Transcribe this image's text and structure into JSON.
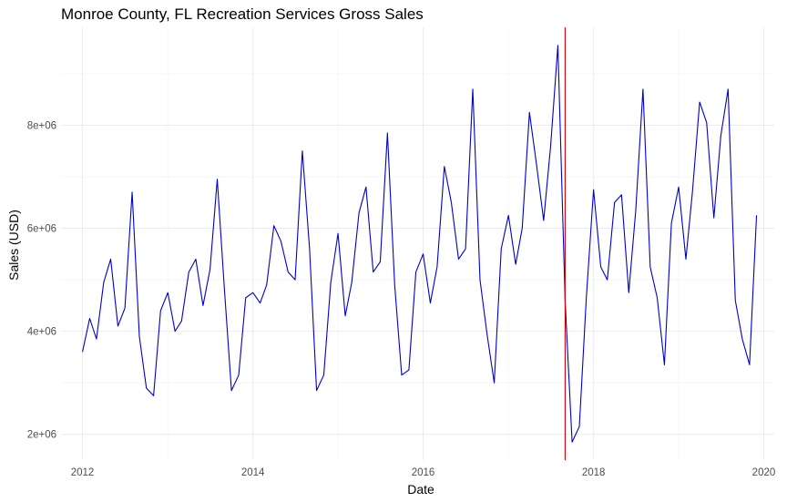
{
  "chart_data": {
    "type": "line",
    "title": "Monroe County, FL Recreation Services Gross Sales",
    "xlabel": "Date",
    "ylabel": "Sales (USD)",
    "xlim": [
      "2011-10-01",
      "2020-02-15"
    ],
    "ylim": [
      1500000,
      9900000
    ],
    "x_ticks": [
      "2012",
      "2014",
      "2016",
      "2018",
      "2020"
    ],
    "x_tick_dates": [
      "2012-01-01",
      "2014-01-01",
      "2016-01-01",
      "2018-01-01",
      "2020-01-01"
    ],
    "y_ticks": [
      2000000,
      4000000,
      6000000,
      8000000
    ],
    "y_tick_labels": [
      "2e+06",
      "4e+06",
      "6e+06",
      "8e+06"
    ],
    "grid": true,
    "series_color": "#0000cd",
    "vline_date": "2017-09-01",
    "vline_color": "#cc0000",
    "series": [
      {
        "x": [
          "2012-01",
          "2012-02",
          "2012-03",
          "2012-04",
          "2012-05",
          "2012-06",
          "2012-07",
          "2012-08",
          "2012-09",
          "2012-10",
          "2012-11",
          "2012-12",
          "2013-01",
          "2013-02",
          "2013-03",
          "2013-04",
          "2013-05",
          "2013-06",
          "2013-07",
          "2013-08",
          "2013-09",
          "2013-10",
          "2013-11",
          "2013-12",
          "2014-01",
          "2014-02",
          "2014-03",
          "2014-04",
          "2014-05",
          "2014-06",
          "2014-07",
          "2014-08",
          "2014-09",
          "2014-10",
          "2014-11",
          "2014-12",
          "2015-01",
          "2015-02",
          "2015-03",
          "2015-04",
          "2015-05",
          "2015-06",
          "2015-07",
          "2015-08",
          "2015-09",
          "2015-10",
          "2015-11",
          "2015-12",
          "2016-01",
          "2016-02",
          "2016-03",
          "2016-04",
          "2016-05",
          "2016-06",
          "2016-07",
          "2016-08",
          "2016-09",
          "2016-10",
          "2016-11",
          "2016-12",
          "2017-01",
          "2017-02",
          "2017-03",
          "2017-04",
          "2017-05",
          "2017-06",
          "2017-07",
          "2017-08",
          "2017-09",
          "2017-10",
          "2017-11",
          "2017-12",
          "2018-01",
          "2018-02",
          "2018-03",
          "2018-04",
          "2018-05",
          "2018-06",
          "2018-07",
          "2018-08",
          "2018-09",
          "2018-10",
          "2018-11",
          "2018-12",
          "2019-01",
          "2019-02",
          "2019-03",
          "2019-04",
          "2019-05",
          "2019-06",
          "2019-07",
          "2019-08",
          "2019-09",
          "2019-10",
          "2019-11",
          "2019-12"
        ],
        "values": [
          3600000,
          4250000,
          3850000,
          4950000,
          5400000,
          4100000,
          4450000,
          6700000,
          3900000,
          2900000,
          2750000,
          4400000,
          4750000,
          4000000,
          4200000,
          5150000,
          5400000,
          4500000,
          5200000,
          6950000,
          4800000,
          2850000,
          3150000,
          4650000,
          4750000,
          4550000,
          4900000,
          6050000,
          5750000,
          5150000,
          5000000,
          7500000,
          5600000,
          2850000,
          3150000,
          4950000,
          5900000,
          4300000,
          4950000,
          6300000,
          6800000,
          5150000,
          5350000,
          7850000,
          4900000,
          3150000,
          3250000,
          5150000,
          5500000,
          4550000,
          5250000,
          7200000,
          6500000,
          5400000,
          5600000,
          8700000,
          5000000,
          3950000,
          3000000,
          5600000,
          6250000,
          5300000,
          6000000,
          8250000,
          7250000,
          6150000,
          7600000,
          9550000,
          4600000,
          1850000,
          2150000,
          4650000,
          6750000,
          5250000,
          5000000,
          6500000,
          6650000,
          4750000,
          6350000,
          8700000,
          5250000,
          4650000,
          3350000,
          6100000,
          6800000,
          5400000,
          6700000,
          8450000,
          8050000,
          6200000,
          7800000,
          8700000,
          4600000,
          3850000,
          3350000,
          6250000
        ]
      }
    ]
  }
}
